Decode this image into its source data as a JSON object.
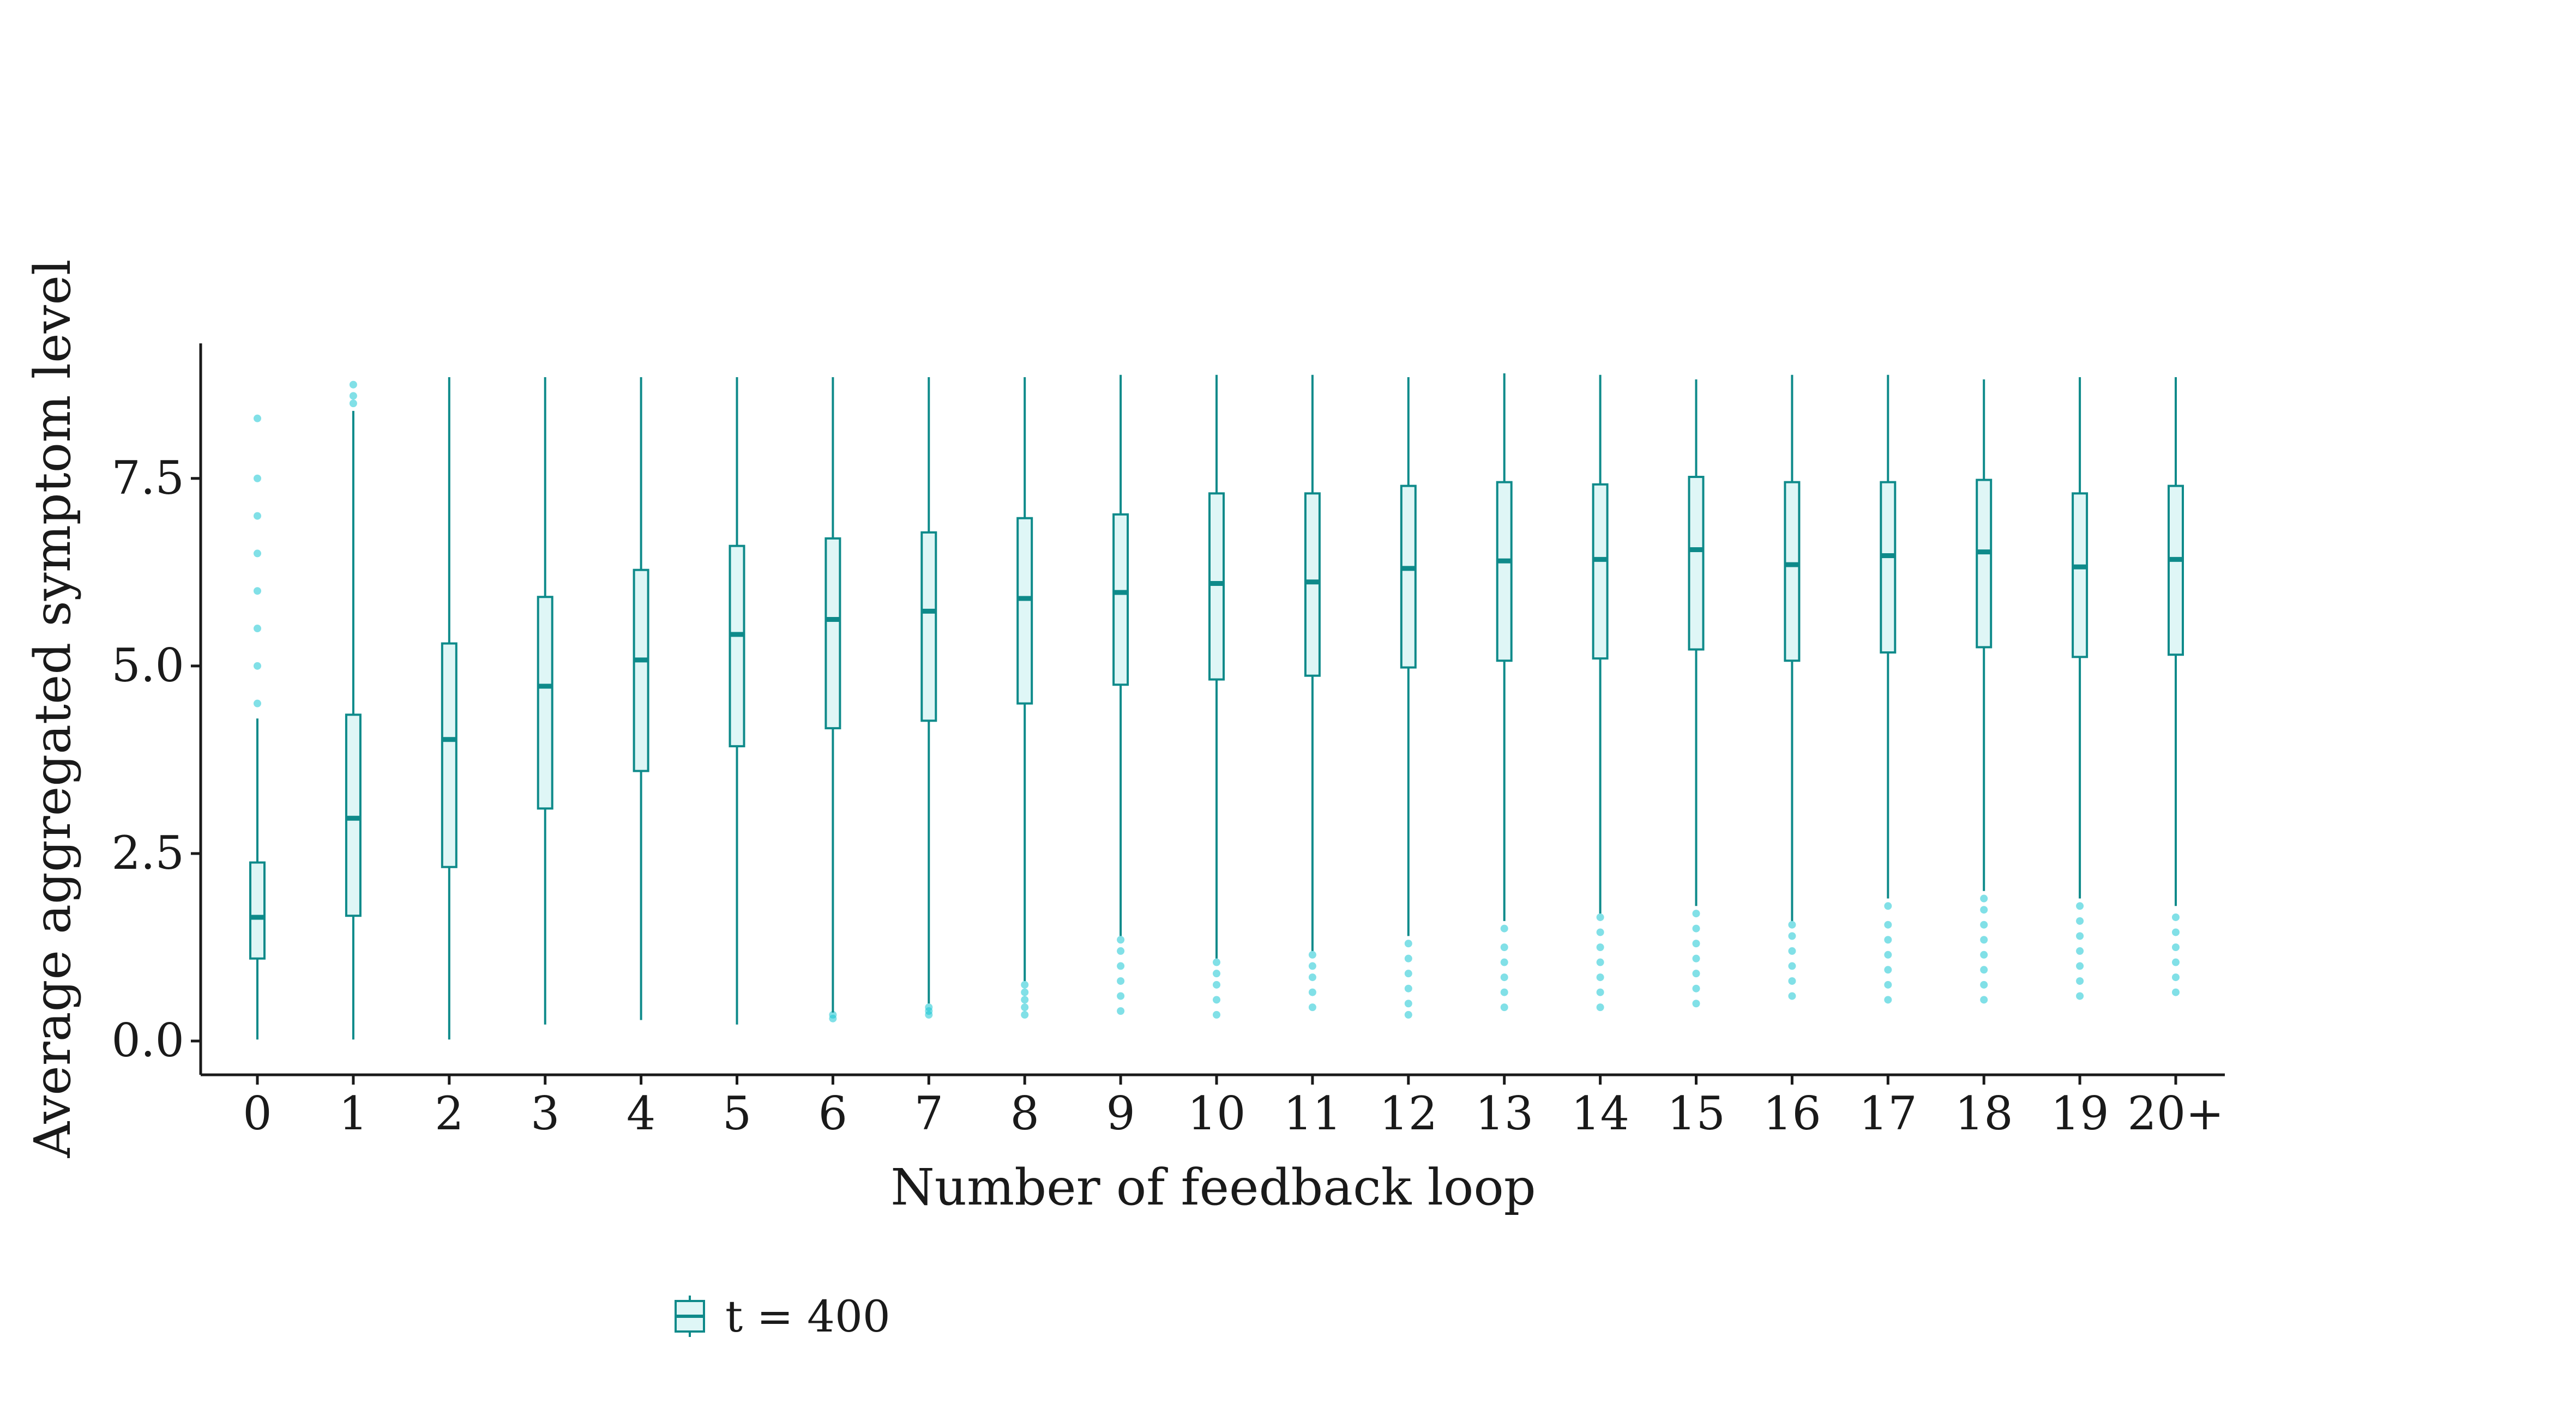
{
  "chart_data": {
    "type": "boxplot",
    "xlabel": "Number of feedback loop",
    "ylabel": "Average aggregated symptom level",
    "ylim": [
      -0.45,
      9.3
    ],
    "yticks": [
      0,
      2.5,
      5,
      7.5
    ],
    "ytick_labels": [
      "0.0",
      "2.5",
      "5.0",
      "7.5"
    ],
    "grid": false,
    "legend": {
      "position": "bottom",
      "entries": [
        "t = 400"
      ]
    },
    "colors": {
      "box_stroke": "#0e8a8a",
      "box_fill": "#dff6f6",
      "outlier": "#19c7d4",
      "axis": "#1a1a1a"
    },
    "series": [
      {
        "name": "t = 400",
        "boxes": [
          {
            "category": "0",
            "whislo": 0.02,
            "q1": 1.1,
            "med": 1.65,
            "q3": 2.38,
            "whishi": 4.3,
            "outliers": [
              4.5,
              5.0,
              5.5,
              6.0,
              6.5,
              7.0,
              7.5,
              8.3
            ]
          },
          {
            "category": "1",
            "whislo": 0.02,
            "q1": 1.67,
            "med": 2.97,
            "q3": 4.35,
            "whishi": 8.4,
            "outliers": [
              8.5,
              8.6,
              8.75
            ]
          },
          {
            "category": "2",
            "whislo": 0.02,
            "q1": 2.32,
            "med": 4.02,
            "q3": 5.3,
            "whishi": 8.85,
            "outliers": []
          },
          {
            "category": "3",
            "whislo": 0.22,
            "q1": 3.1,
            "med": 4.73,
            "q3": 5.92,
            "whishi": 8.85,
            "outliers": []
          },
          {
            "category": "4",
            "whislo": 0.28,
            "q1": 3.6,
            "med": 5.08,
            "q3": 6.28,
            "whishi": 8.85,
            "outliers": []
          },
          {
            "category": "5",
            "whislo": 0.22,
            "q1": 3.93,
            "med": 5.42,
            "q3": 6.6,
            "whishi": 8.85,
            "outliers": []
          },
          {
            "category": "6",
            "whislo": 0.38,
            "q1": 4.17,
            "med": 5.62,
            "q3": 6.7,
            "whishi": 8.85,
            "outliers": [
              0.3,
              0.35
            ]
          },
          {
            "category": "7",
            "whislo": 0.5,
            "q1": 4.27,
            "med": 5.73,
            "q3": 6.78,
            "whishi": 8.85,
            "outliers": [
              0.35,
              0.4,
              0.45
            ]
          },
          {
            "category": "8",
            "whislo": 0.8,
            "q1": 4.5,
            "med": 5.9,
            "q3": 6.97,
            "whishi": 8.85,
            "outliers": [
              0.35,
              0.45,
              0.55,
              0.65,
              0.75
            ]
          },
          {
            "category": "9",
            "whislo": 1.4,
            "q1": 4.75,
            "med": 5.98,
            "q3": 7.02,
            "whishi": 8.88,
            "outliers": [
              0.4,
              0.6,
              0.8,
              1.0,
              1.2,
              1.35
            ]
          },
          {
            "category": "10",
            "whislo": 1.1,
            "q1": 4.82,
            "med": 6.1,
            "q3": 7.3,
            "whishi": 8.88,
            "outliers": [
              0.35,
              0.55,
              0.75,
              0.9,
              1.05
            ]
          },
          {
            "category": "11",
            "whislo": 1.2,
            "q1": 4.87,
            "med": 6.12,
            "q3": 7.3,
            "whishi": 8.88,
            "outliers": [
              0.45,
              0.65,
              0.85,
              1.0,
              1.15
            ]
          },
          {
            "category": "12",
            "whislo": 1.4,
            "q1": 4.98,
            "med": 6.3,
            "q3": 7.4,
            "whishi": 8.85,
            "outliers": [
              0.35,
              0.5,
              0.7,
              0.9,
              1.1,
              1.3
            ]
          },
          {
            "category": "13",
            "whislo": 1.6,
            "q1": 5.07,
            "med": 6.4,
            "q3": 7.45,
            "whishi": 8.9,
            "outliers": [
              0.45,
              0.65,
              0.85,
              1.05,
              1.25,
              1.5
            ]
          },
          {
            "category": "14",
            "whislo": 1.7,
            "q1": 5.1,
            "med": 6.42,
            "q3": 7.42,
            "whishi": 8.88,
            "outliers": [
              0.45,
              0.65,
              0.85,
              1.05,
              1.25,
              1.45,
              1.65
            ]
          },
          {
            "category": "15",
            "whislo": 1.8,
            "q1": 5.22,
            "med": 6.55,
            "q3": 7.52,
            "whishi": 8.82,
            "outliers": [
              0.5,
              0.7,
              0.9,
              1.1,
              1.3,
              1.5,
              1.7
            ]
          },
          {
            "category": "16",
            "whislo": 1.6,
            "q1": 5.07,
            "med": 6.35,
            "q3": 7.45,
            "whishi": 8.88,
            "outliers": [
              0.6,
              0.8,
              1.0,
              1.2,
              1.4,
              1.55
            ]
          },
          {
            "category": "17",
            "whislo": 1.9,
            "q1": 5.18,
            "med": 6.47,
            "q3": 7.45,
            "whishi": 8.88,
            "outliers": [
              0.55,
              0.75,
              0.95,
              1.15,
              1.35,
              1.55,
              1.8
            ]
          },
          {
            "category": "18",
            "whislo": 2.0,
            "q1": 5.25,
            "med": 6.52,
            "q3": 7.48,
            "whishi": 8.82,
            "outliers": [
              0.55,
              0.75,
              0.95,
              1.15,
              1.35,
              1.55,
              1.75,
              1.9
            ]
          },
          {
            "category": "19",
            "whislo": 1.9,
            "q1": 5.12,
            "med": 6.32,
            "q3": 7.3,
            "whishi": 8.85,
            "outliers": [
              0.6,
              0.8,
              1.0,
              1.2,
              1.4,
              1.6,
              1.8
            ]
          },
          {
            "category": "20+",
            "whislo": 1.8,
            "q1": 5.15,
            "med": 6.42,
            "q3": 7.4,
            "whishi": 8.85,
            "outliers": [
              0.65,
              0.85,
              1.05,
              1.25,
              1.45,
              1.65
            ]
          }
        ]
      }
    ]
  }
}
